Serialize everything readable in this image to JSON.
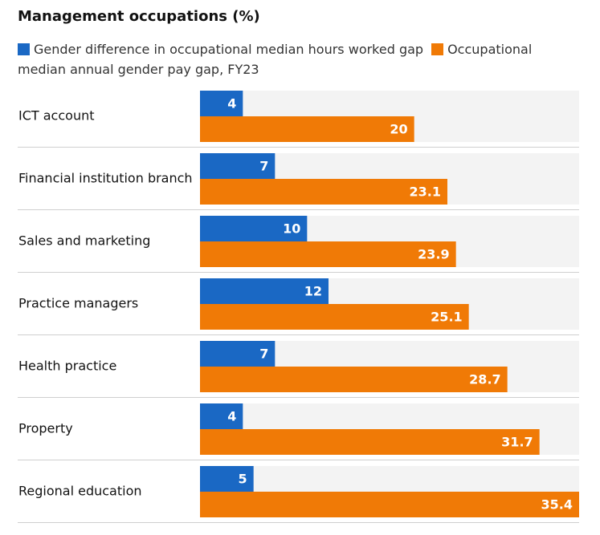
{
  "chart_data": {
    "type": "grouped-hbar",
    "title": "Management occupations (%)",
    "categories": [
      "ICT account",
      "Financial institution branch",
      "Sales and marketing",
      "Practice managers",
      "Health practice",
      "Property",
      "Regional education"
    ],
    "series": [
      {
        "name": "Gender difference in occupational median hours worked gap",
        "color": "#1a68c4",
        "values": [
          4,
          7,
          10,
          12,
          7,
          4,
          5
        ]
      },
      {
        "name": "Occupational median annual gender pay gap, FY23",
        "color": "#f07a06",
        "values": [
          20,
          23.1,
          23.9,
          25.1,
          28.7,
          31.7,
          35.4
        ]
      }
    ],
    "xlim": [
      0,
      35.4
    ]
  }
}
